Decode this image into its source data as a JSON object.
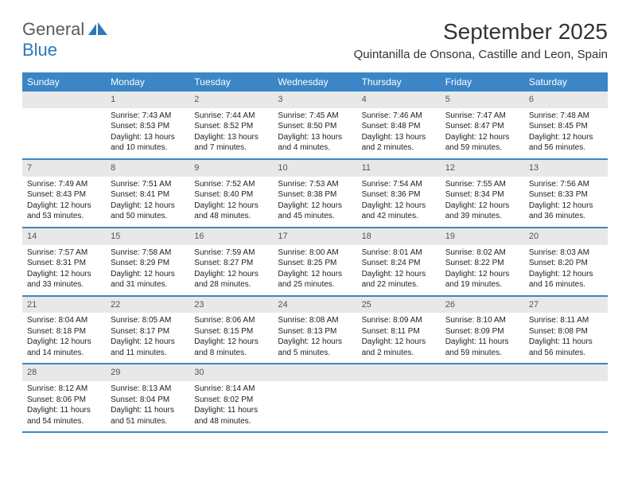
{
  "logo": {
    "word1": "General",
    "word2": "Blue"
  },
  "title": "September 2025",
  "location": "Quintanilla de Onsona, Castille and Leon, Spain",
  "colors": {
    "header_bg": "#3b86c6",
    "header_text": "#ffffff",
    "daynum_bg": "#e8e8e8",
    "daynum_text": "#555555",
    "body_text": "#222222",
    "logo_gray": "#5b5b5b",
    "logo_blue": "#2e77b6",
    "border": "#3b86c6"
  },
  "weekdays": [
    "Sunday",
    "Monday",
    "Tuesday",
    "Wednesday",
    "Thursday",
    "Friday",
    "Saturday"
  ],
  "weeks": [
    [
      {
        "num": "",
        "sunrise": "",
        "sunset": "",
        "daylight": ""
      },
      {
        "num": "1",
        "sunrise": "Sunrise: 7:43 AM",
        "sunset": "Sunset: 8:53 PM",
        "daylight": "Daylight: 13 hours and 10 minutes."
      },
      {
        "num": "2",
        "sunrise": "Sunrise: 7:44 AM",
        "sunset": "Sunset: 8:52 PM",
        "daylight": "Daylight: 13 hours and 7 minutes."
      },
      {
        "num": "3",
        "sunrise": "Sunrise: 7:45 AM",
        "sunset": "Sunset: 8:50 PM",
        "daylight": "Daylight: 13 hours and 4 minutes."
      },
      {
        "num": "4",
        "sunrise": "Sunrise: 7:46 AM",
        "sunset": "Sunset: 8:48 PM",
        "daylight": "Daylight: 13 hours and 2 minutes."
      },
      {
        "num": "5",
        "sunrise": "Sunrise: 7:47 AM",
        "sunset": "Sunset: 8:47 PM",
        "daylight": "Daylight: 12 hours and 59 minutes."
      },
      {
        "num": "6",
        "sunrise": "Sunrise: 7:48 AM",
        "sunset": "Sunset: 8:45 PM",
        "daylight": "Daylight: 12 hours and 56 minutes."
      }
    ],
    [
      {
        "num": "7",
        "sunrise": "Sunrise: 7:49 AM",
        "sunset": "Sunset: 8:43 PM",
        "daylight": "Daylight: 12 hours and 53 minutes."
      },
      {
        "num": "8",
        "sunrise": "Sunrise: 7:51 AM",
        "sunset": "Sunset: 8:41 PM",
        "daylight": "Daylight: 12 hours and 50 minutes."
      },
      {
        "num": "9",
        "sunrise": "Sunrise: 7:52 AM",
        "sunset": "Sunset: 8:40 PM",
        "daylight": "Daylight: 12 hours and 48 minutes."
      },
      {
        "num": "10",
        "sunrise": "Sunrise: 7:53 AM",
        "sunset": "Sunset: 8:38 PM",
        "daylight": "Daylight: 12 hours and 45 minutes."
      },
      {
        "num": "11",
        "sunrise": "Sunrise: 7:54 AM",
        "sunset": "Sunset: 8:36 PM",
        "daylight": "Daylight: 12 hours and 42 minutes."
      },
      {
        "num": "12",
        "sunrise": "Sunrise: 7:55 AM",
        "sunset": "Sunset: 8:34 PM",
        "daylight": "Daylight: 12 hours and 39 minutes."
      },
      {
        "num": "13",
        "sunrise": "Sunrise: 7:56 AM",
        "sunset": "Sunset: 8:33 PM",
        "daylight": "Daylight: 12 hours and 36 minutes."
      }
    ],
    [
      {
        "num": "14",
        "sunrise": "Sunrise: 7:57 AM",
        "sunset": "Sunset: 8:31 PM",
        "daylight": "Daylight: 12 hours and 33 minutes."
      },
      {
        "num": "15",
        "sunrise": "Sunrise: 7:58 AM",
        "sunset": "Sunset: 8:29 PM",
        "daylight": "Daylight: 12 hours and 31 minutes."
      },
      {
        "num": "16",
        "sunrise": "Sunrise: 7:59 AM",
        "sunset": "Sunset: 8:27 PM",
        "daylight": "Daylight: 12 hours and 28 minutes."
      },
      {
        "num": "17",
        "sunrise": "Sunrise: 8:00 AM",
        "sunset": "Sunset: 8:25 PM",
        "daylight": "Daylight: 12 hours and 25 minutes."
      },
      {
        "num": "18",
        "sunrise": "Sunrise: 8:01 AM",
        "sunset": "Sunset: 8:24 PM",
        "daylight": "Daylight: 12 hours and 22 minutes."
      },
      {
        "num": "19",
        "sunrise": "Sunrise: 8:02 AM",
        "sunset": "Sunset: 8:22 PM",
        "daylight": "Daylight: 12 hours and 19 minutes."
      },
      {
        "num": "20",
        "sunrise": "Sunrise: 8:03 AM",
        "sunset": "Sunset: 8:20 PM",
        "daylight": "Daylight: 12 hours and 16 minutes."
      }
    ],
    [
      {
        "num": "21",
        "sunrise": "Sunrise: 8:04 AM",
        "sunset": "Sunset: 8:18 PM",
        "daylight": "Daylight: 12 hours and 14 minutes."
      },
      {
        "num": "22",
        "sunrise": "Sunrise: 8:05 AM",
        "sunset": "Sunset: 8:17 PM",
        "daylight": "Daylight: 12 hours and 11 minutes."
      },
      {
        "num": "23",
        "sunrise": "Sunrise: 8:06 AM",
        "sunset": "Sunset: 8:15 PM",
        "daylight": "Daylight: 12 hours and 8 minutes."
      },
      {
        "num": "24",
        "sunrise": "Sunrise: 8:08 AM",
        "sunset": "Sunset: 8:13 PM",
        "daylight": "Daylight: 12 hours and 5 minutes."
      },
      {
        "num": "25",
        "sunrise": "Sunrise: 8:09 AM",
        "sunset": "Sunset: 8:11 PM",
        "daylight": "Daylight: 12 hours and 2 minutes."
      },
      {
        "num": "26",
        "sunrise": "Sunrise: 8:10 AM",
        "sunset": "Sunset: 8:09 PM",
        "daylight": "Daylight: 11 hours and 59 minutes."
      },
      {
        "num": "27",
        "sunrise": "Sunrise: 8:11 AM",
        "sunset": "Sunset: 8:08 PM",
        "daylight": "Daylight: 11 hours and 56 minutes."
      }
    ],
    [
      {
        "num": "28",
        "sunrise": "Sunrise: 8:12 AM",
        "sunset": "Sunset: 8:06 PM",
        "daylight": "Daylight: 11 hours and 54 minutes."
      },
      {
        "num": "29",
        "sunrise": "Sunrise: 8:13 AM",
        "sunset": "Sunset: 8:04 PM",
        "daylight": "Daylight: 11 hours and 51 minutes."
      },
      {
        "num": "30",
        "sunrise": "Sunrise: 8:14 AM",
        "sunset": "Sunset: 8:02 PM",
        "daylight": "Daylight: 11 hours and 48 minutes."
      },
      {
        "num": "",
        "sunrise": "",
        "sunset": "",
        "daylight": ""
      },
      {
        "num": "",
        "sunrise": "",
        "sunset": "",
        "daylight": ""
      },
      {
        "num": "",
        "sunrise": "",
        "sunset": "",
        "daylight": ""
      },
      {
        "num": "",
        "sunrise": "",
        "sunset": "",
        "daylight": ""
      }
    ]
  ]
}
